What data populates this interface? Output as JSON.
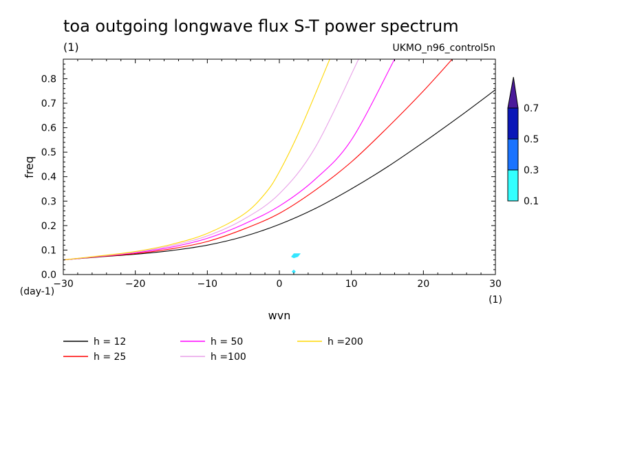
{
  "title": "toa outgoing longwave flux S-T power spectrum",
  "units_label": "(1)",
  "source_label": "UKMO_n96_control5n",
  "chart_data": {
    "type": "line",
    "xlabel": "wvn",
    "ylabel": "freq",
    "x_units": "(1)",
    "y_units": "(day-1)",
    "xlim": [
      -30,
      30
    ],
    "ylim": [
      0,
      0.88
    ],
    "x_ticks": [
      "-30",
      "-20",
      "-10",
      "0",
      "10",
      "20",
      "30"
    ],
    "y_ticks": [
      "0.0",
      "0.1",
      "0.2",
      "0.3",
      "0.4",
      "0.5",
      "0.6",
      "0.7",
      "0.8"
    ],
    "series": [
      {
        "name": "h = 12",
        "color": "#000000",
        "x": [
          -30,
          -25,
          -20,
          -15,
          -10,
          -5,
          0,
          5,
          10,
          15,
          20,
          25,
          30
        ],
        "y": [
          0.06,
          0.072,
          0.083,
          0.098,
          0.12,
          0.155,
          0.205,
          0.27,
          0.35,
          0.44,
          0.54,
          0.645,
          0.755
        ]
      },
      {
        "name": "h = 25",
        "color": "#ff0000",
        "x": [
          -30,
          -25,
          -20,
          -15,
          -10,
          -5,
          0,
          5,
          10,
          15,
          20,
          24
        ],
        "y": [
          0.06,
          0.073,
          0.086,
          0.105,
          0.135,
          0.185,
          0.25,
          0.345,
          0.46,
          0.6,
          0.75,
          0.88
        ]
      },
      {
        "name": "h = 50",
        "color": "#ff00ff",
        "x": [
          -30,
          -25,
          -20,
          -15,
          -10,
          -5,
          0,
          5,
          10,
          16
        ],
        "y": [
          0.06,
          0.074,
          0.089,
          0.112,
          0.148,
          0.205,
          0.28,
          0.39,
          0.55,
          0.88
        ]
      },
      {
        "name": "h =100",
        "color": "#e8a0e8",
        "x": [
          -30,
          -25,
          -20,
          -15,
          -10,
          -5,
          0,
          5,
          11
        ],
        "y": [
          0.06,
          0.075,
          0.091,
          0.118,
          0.158,
          0.225,
          0.33,
          0.52,
          0.88
        ]
      },
      {
        "name": "h =200",
        "color": "#ffd700",
        "x": [
          -30,
          -25,
          -20,
          -15,
          -10,
          -5,
          -2,
          0,
          3,
          7
        ],
        "y": [
          0.06,
          0.076,
          0.094,
          0.123,
          0.168,
          0.245,
          0.33,
          0.42,
          0.6,
          0.88
        ]
      }
    ],
    "shaded_regions": [
      {
        "x": 2.2,
        "y": 0.078,
        "level": "0.1-0.3",
        "color": "#33e6ff"
      },
      {
        "x": 2.0,
        "y": 0.012,
        "level": "0.1-0.3",
        "color": "#33e6ff"
      }
    ],
    "colorbar": {
      "levels": [
        "0.1",
        "0.3",
        "0.5",
        "0.7"
      ],
      "colors": [
        "#33ffff",
        "#1a73ff",
        "#0a17b8",
        "#4a1a9a"
      ]
    },
    "grid": false,
    "legend_position": "bottom"
  }
}
